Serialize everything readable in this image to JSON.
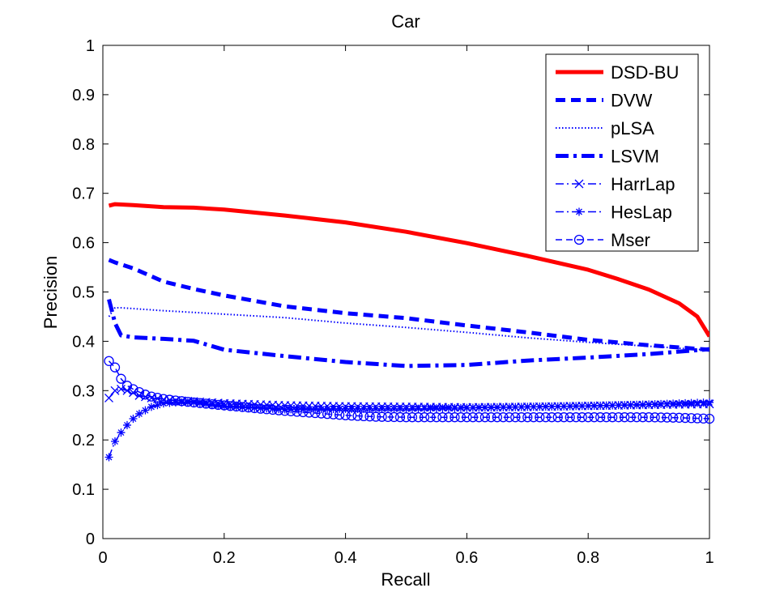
{
  "chart_data": {
    "type": "line",
    "title": "Car",
    "xlabel": "Recall",
    "ylabel": "Precision",
    "xlim": [
      0,
      1
    ],
    "ylim": [
      0,
      1
    ],
    "xticks": [
      "0",
      "0.2",
      "0.4",
      "0.6",
      "0.8",
      "1"
    ],
    "yticks": [
      "0",
      "0.1",
      "0.2",
      "0.3",
      "0.4",
      "0.5",
      "0.6",
      "0.7",
      "0.8",
      "0.9",
      "1"
    ],
    "grid": false,
    "legend_position": "top-right",
    "series": [
      {
        "name": "DSD-BU",
        "color": "#ff0000",
        "style": "solid-thick",
        "marker": "none",
        "x": [
          0.01,
          0.02,
          0.05,
          0.1,
          0.15,
          0.2,
          0.3,
          0.4,
          0.5,
          0.6,
          0.7,
          0.8,
          0.85,
          0.9,
          0.95,
          0.98,
          1.0
        ],
        "y": [
          0.675,
          0.678,
          0.676,
          0.672,
          0.671,
          0.667,
          0.655,
          0.641,
          0.622,
          0.599,
          0.573,
          0.545,
          0.526,
          0.505,
          0.477,
          0.45,
          0.41
        ]
      },
      {
        "name": "DVW",
        "color": "#0000ff",
        "style": "dashed-thick",
        "marker": "none",
        "x": [
          0.01,
          0.02,
          0.05,
          0.1,
          0.15,
          0.2,
          0.3,
          0.4,
          0.5,
          0.6,
          0.7,
          0.8,
          0.9,
          1.0
        ],
        "y": [
          0.565,
          0.56,
          0.548,
          0.521,
          0.506,
          0.493,
          0.471,
          0.457,
          0.447,
          0.432,
          0.418,
          0.403,
          0.392,
          0.383
        ]
      },
      {
        "name": "pLSA",
        "color": "#0000ff",
        "style": "dotted",
        "marker": "none",
        "x": [
          0.01,
          0.02,
          0.03,
          0.1,
          0.2,
          0.3,
          0.4,
          0.5,
          0.6,
          0.7,
          0.8,
          0.9,
          1.0
        ],
        "y": [
          0.45,
          0.468,
          0.468,
          0.462,
          0.455,
          0.448,
          0.437,
          0.428,
          0.418,
          0.407,
          0.398,
          0.39,
          0.382
        ]
      },
      {
        "name": "LSVM",
        "color": "#0000ff",
        "style": "dashdot-thick",
        "marker": "none",
        "x": [
          0.01,
          0.02,
          0.03,
          0.05,
          0.1,
          0.15,
          0.2,
          0.3,
          0.4,
          0.5,
          0.6,
          0.7,
          0.8,
          0.9,
          1.0
        ],
        "y": [
          0.485,
          0.437,
          0.412,
          0.408,
          0.405,
          0.401,
          0.383,
          0.37,
          0.358,
          0.35,
          0.352,
          0.361,
          0.367,
          0.374,
          0.384
        ]
      },
      {
        "name": "HarrLap",
        "color": "#0000ff",
        "style": "dashdot-thin",
        "marker": "x",
        "x": [
          0.01,
          0.02,
          0.03,
          0.04,
          0.05,
          0.06,
          0.08,
          0.1,
          0.12,
          0.15,
          0.2,
          0.3,
          0.4,
          0.5,
          0.6,
          0.7,
          0.8,
          0.9,
          1.0
        ],
        "y": [
          0.285,
          0.3,
          0.303,
          0.3,
          0.296,
          0.29,
          0.285,
          0.282,
          0.28,
          0.278,
          0.274,
          0.27,
          0.268,
          0.267,
          0.266,
          0.267,
          0.269,
          0.271,
          0.273
        ]
      },
      {
        "name": "HesLap",
        "color": "#0000ff",
        "style": "dashdot-thin",
        "marker": "*",
        "x": [
          0.01,
          0.02,
          0.03,
          0.04,
          0.05,
          0.06,
          0.07,
          0.08,
          0.1,
          0.12,
          0.15,
          0.2,
          0.3,
          0.4,
          0.5,
          0.6,
          0.7,
          0.8,
          0.9,
          1.0
        ],
        "y": [
          0.165,
          0.197,
          0.215,
          0.23,
          0.243,
          0.253,
          0.26,
          0.267,
          0.274,
          0.276,
          0.276,
          0.268,
          0.262,
          0.263,
          0.263,
          0.265,
          0.267,
          0.269,
          0.272,
          0.276
        ]
      },
      {
        "name": "Mser",
        "color": "#0000ff",
        "style": "dashed-thin",
        "marker": "o",
        "x": [
          0.01,
          0.02,
          0.03,
          0.04,
          0.05,
          0.06,
          0.07,
          0.08,
          0.1,
          0.12,
          0.15,
          0.2,
          0.3,
          0.4,
          0.45,
          0.5,
          0.6,
          0.7,
          0.8,
          0.9,
          0.95,
          1.0
        ],
        "y": [
          0.36,
          0.347,
          0.324,
          0.31,
          0.303,
          0.297,
          0.292,
          0.288,
          0.283,
          0.28,
          0.276,
          0.27,
          0.259,
          0.25,
          0.247,
          0.246,
          0.246,
          0.246,
          0.246,
          0.246,
          0.245,
          0.243
        ]
      }
    ]
  }
}
